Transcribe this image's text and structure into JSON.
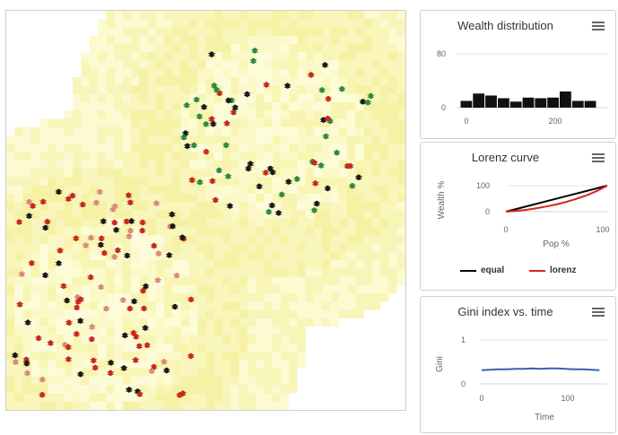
{
  "colors": {
    "equal": "#000000",
    "lorenz": "#d6261f",
    "gini": "#3a62ab",
    "bars": "#111111"
  },
  "world": {
    "agent_colors": [
      "#c8281e",
      "#1a1a1a",
      "#2e8b3e",
      "#d98a7a"
    ]
  },
  "wealth_chart": {
    "title": "Wealth distribution",
    "y_ticks": [
      "80",
      "0"
    ],
    "x_ticks": [
      "0",
      "200"
    ],
    "chart_data": {
      "type": "bar",
      "values": [
        10,
        21,
        18,
        14,
        9,
        15,
        14,
        15,
        24,
        10,
        10
      ],
      "ylim": [
        0,
        80
      ],
      "xlim": [
        -20,
        300
      ]
    }
  },
  "lorenz_chart": {
    "title": "Lorenz curve",
    "y_label": "Wealth %",
    "x_label": "Pop %",
    "y_ticks": [
      "100",
      "0"
    ],
    "x_ticks": [
      "0",
      "100"
    ],
    "legend": {
      "equal": "equal",
      "lorenz": "lorenz"
    },
    "chart_data": {
      "type": "line",
      "series": [
        {
          "name": "equal",
          "x": [
            0,
            100
          ],
          "y": [
            0,
            100
          ]
        },
        {
          "name": "lorenz",
          "x": [
            0,
            10,
            20,
            30,
            40,
            50,
            60,
            70,
            80,
            90,
            100
          ],
          "y": [
            0,
            3,
            7,
            13,
            20,
            28,
            38,
            50,
            63,
            80,
            100
          ]
        }
      ],
      "xlim": [
        0,
        100
      ],
      "ylim": [
        0,
        100
      ]
    }
  },
  "gini_chart": {
    "title": "Gini index vs. time",
    "y_label": "Gini",
    "x_label": "Time",
    "y_ticks": [
      "1",
      "0"
    ],
    "x_ticks": [
      "0",
      "100"
    ],
    "chart_data": {
      "type": "line",
      "series": [
        {
          "name": "gini",
          "x": [
            0,
            10,
            20,
            30,
            40,
            50,
            60,
            70,
            80,
            90,
            100,
            110,
            120,
            130,
            140
          ],
          "y": [
            0.31,
            0.32,
            0.33,
            0.33,
            0.34,
            0.34,
            0.35,
            0.34,
            0.35,
            0.35,
            0.34,
            0.33,
            0.33,
            0.32,
            0.31
          ]
        }
      ],
      "xlim": [
        0,
        145
      ],
      "ylim": [
        0,
        1
      ]
    }
  }
}
